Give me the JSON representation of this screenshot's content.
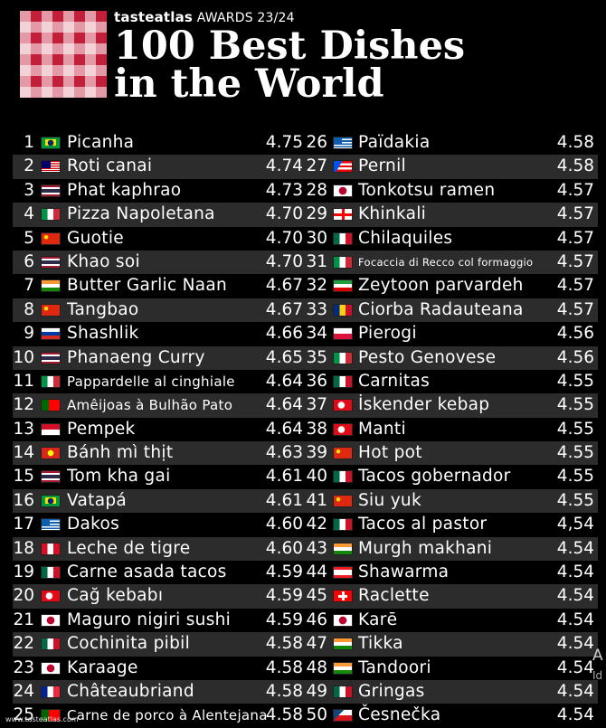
{
  "header": {
    "brand_name": "tasteatlas",
    "brand_suffix": "AWARDS 23/24",
    "title_line1": "100 Best Dishes",
    "title_line2": "in the World"
  },
  "footer": {
    "url": "www.tasteatlas.com"
  },
  "edge_text": {
    "a": "A",
    "b": "Id"
  },
  "flag_colors": {
    "BR": [
      "#009b3a",
      "#fedf00"
    ],
    "MY": [
      "#cc0001",
      "#ffffff"
    ],
    "TH": [
      "#a51931",
      "#2d2a4a"
    ],
    "IT": [
      "#009246",
      "#ce2b37"
    ],
    "CN": [
      "#de2910",
      "#ffde00"
    ],
    "IN": [
      "#ff9933",
      "#138808"
    ],
    "RU": [
      "#ffffff",
      "#d52b1e"
    ],
    "PT": [
      "#006600",
      "#ff0000"
    ],
    "ID": [
      "#ce1126",
      "#ffffff"
    ],
    "VN": [
      "#da251d",
      "#ffff00"
    ],
    "GR": [
      "#0d5eaf",
      "#ffffff"
    ],
    "PE": [
      "#d91023",
      "#ffffff"
    ],
    "MX": [
      "#006847",
      "#ce1126"
    ],
    "TR": [
      "#e30a17",
      "#ffffff"
    ],
    "JP": [
      "#ffffff",
      "#bc002d"
    ],
    "FR": [
      "#002395",
      "#ed2939"
    ],
    "PR": [
      "#ed0000",
      "#0050f0"
    ],
    "GE": [
      "#ffffff",
      "#ff0000"
    ],
    "IR": [
      "#239f40",
      "#da0000"
    ],
    "RO": [
      "#002b7f",
      "#fcd116"
    ],
    "PL": [
      "#ffffff",
      "#dc143c"
    ],
    "LB": [
      "#ed1c24",
      "#00a651"
    ],
    "CH": [
      "#ff0000",
      "#ffffff"
    ],
    "CZ": [
      "#11457e",
      "#d7141a"
    ]
  },
  "dishes_left": [
    {
      "rank": "1",
      "name": "Picanha",
      "score": "4.75",
      "flag": "BR"
    },
    {
      "rank": "2",
      "name": "Roti canai",
      "score": "4.74",
      "flag": "MY"
    },
    {
      "rank": "3",
      "name": "Phat kaphrao",
      "score": "4.73",
      "flag": "TH"
    },
    {
      "rank": "4",
      "name": "Pizza Napoletana",
      "score": "4.70",
      "flag": "IT"
    },
    {
      "rank": "5",
      "name": "Guotie",
      "score": "4.70",
      "flag": "CN"
    },
    {
      "rank": "6",
      "name": "Khao soi",
      "score": "4.70",
      "flag": "TH"
    },
    {
      "rank": "7",
      "name": "Butter Garlic Naan",
      "score": "4.67",
      "flag": "IN"
    },
    {
      "rank": "8",
      "name": "Tangbao",
      "score": "4.67",
      "flag": "CN"
    },
    {
      "rank": "9",
      "name": "Shashlik",
      "score": "4.66",
      "flag": "RU"
    },
    {
      "rank": "10",
      "name": "Phanaeng Curry",
      "score": "4.65",
      "flag": "TH"
    },
    {
      "rank": "11",
      "name": "Pappardelle al cinghiale",
      "score": "4.64",
      "flag": "IT",
      "small": true
    },
    {
      "rank": "12",
      "name": "Amêijoas à Bulhão Pato",
      "score": "4.64",
      "flag": "PT",
      "small": true
    },
    {
      "rank": "13",
      "name": "Pempek",
      "score": "4.64",
      "flag": "ID"
    },
    {
      "rank": "14",
      "name": "Bánh mì thịt",
      "score": "4.63",
      "flag": "VN"
    },
    {
      "rank": "15",
      "name": "Tom kha gai",
      "score": "4.61",
      "flag": "TH"
    },
    {
      "rank": "16",
      "name": "Vatapá",
      "score": "4.61",
      "flag": "BR"
    },
    {
      "rank": "17",
      "name": "Dakos",
      "score": "4.60",
      "flag": "GR"
    },
    {
      "rank": "18",
      "name": "Leche de tigre",
      "score": "4.60",
      "flag": "PE"
    },
    {
      "rank": "19",
      "name": "Carne asada tacos",
      "score": "4.59",
      "flag": "MX"
    },
    {
      "rank": "20",
      "name": "Cağ kebabı",
      "score": "4.59",
      "flag": "TR"
    },
    {
      "rank": "21",
      "name": "Maguro nigiri sushi",
      "score": "4.59",
      "flag": "JP"
    },
    {
      "rank": "22",
      "name": "Cochinita pibil",
      "score": "4.58",
      "flag": "MX"
    },
    {
      "rank": "23",
      "name": "Karaage",
      "score": "4.58",
      "flag": "JP"
    },
    {
      "rank": "24",
      "name": "Châteaubriand",
      "score": "4.58",
      "flag": "FR"
    },
    {
      "rank": "25",
      "name": "Carne de porco à Alentejana",
      "score": "4.58",
      "flag": "PT",
      "small": true
    }
  ],
  "dishes_right": [
    {
      "rank": "26",
      "name": "Païdakia",
      "score": "4.58",
      "flag": "GR"
    },
    {
      "rank": "27",
      "name": "Pernil",
      "score": "4.58",
      "flag": "PR"
    },
    {
      "rank": "28",
      "name": "Tonkotsu ramen",
      "score": "4.57",
      "flag": "JP"
    },
    {
      "rank": "29",
      "name": "Khinkali",
      "score": "4.57",
      "flag": "GE"
    },
    {
      "rank": "30",
      "name": "Chilaquiles",
      "score": "4.57",
      "flag": "MX"
    },
    {
      "rank": "31",
      "name": "Focaccia di Recco col formaggio",
      "score": "4.57",
      "flag": "IT",
      "tiny": true
    },
    {
      "rank": "32",
      "name": "Zeytoon parvardeh",
      "score": "4.57",
      "flag": "IR"
    },
    {
      "rank": "33",
      "name": "Ciorba Radauteana",
      "score": "4.57",
      "flag": "RO"
    },
    {
      "rank": "34",
      "name": "Pierogi",
      "score": "4.56",
      "flag": "PL"
    },
    {
      "rank": "35",
      "name": "Pesto Genovese",
      "score": "4.56",
      "flag": "IT"
    },
    {
      "rank": "36",
      "name": "Carnitas",
      "score": "4.55",
      "flag": "MX"
    },
    {
      "rank": "37",
      "name": "İskender kebap",
      "score": "4.55",
      "flag": "TR"
    },
    {
      "rank": "38",
      "name": "Manti",
      "score": "4.55",
      "flag": "TR"
    },
    {
      "rank": "39",
      "name": "Hot pot",
      "score": "4.55",
      "flag": "CN"
    },
    {
      "rank": "40",
      "name": "Tacos gobernador",
      "score": "4.55",
      "flag": "MX"
    },
    {
      "rank": "41",
      "name": "Siu yuk",
      "score": "4.55",
      "flag": "CN"
    },
    {
      "rank": "42",
      "name": "Tacos al pastor",
      "score": "4,54",
      "flag": "MX"
    },
    {
      "rank": "43",
      "name": "Murgh makhani",
      "score": "4.54",
      "flag": "IN"
    },
    {
      "rank": "44",
      "name": "Shawarma",
      "score": "4.54",
      "flag": "LB"
    },
    {
      "rank": "45",
      "name": "Raclette",
      "score": "4.54",
      "flag": "CH"
    },
    {
      "rank": "46",
      "name": "Karē",
      "score": "4.54",
      "flag": "JP"
    },
    {
      "rank": "47",
      "name": "Tikka",
      "score": "4.54",
      "flag": "IN"
    },
    {
      "rank": "48",
      "name": "Tandoori",
      "score": "4.54",
      "flag": "IN"
    },
    {
      "rank": "49",
      "name": "Gringas",
      "score": "4.54",
      "flag": "MX"
    },
    {
      "rank": "50",
      "name": "Česnečka",
      "score": "4.54",
      "flag": "CZ"
    }
  ]
}
